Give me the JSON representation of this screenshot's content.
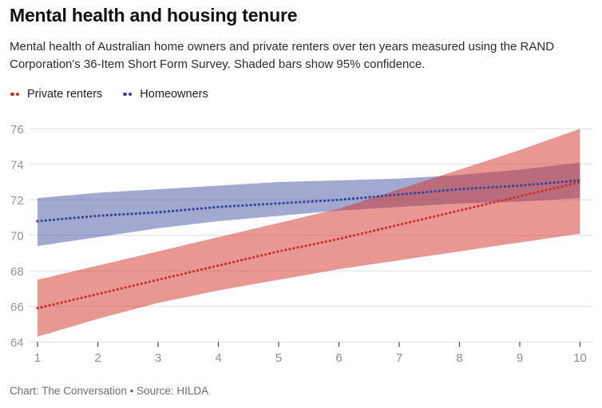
{
  "header": {
    "title": "Mental health and housing tenure",
    "subtitle": "Mental health of Australian home owners and private renters over ten years measured using the RAND Corporation's 36-Item Short Form Survey. Shaded bars show 95% confidence."
  },
  "legend": {
    "items": [
      {
        "label": "Private renters",
        "color": "#c9302a"
      },
      {
        "label": "Homeowners",
        "color": "#36459b"
      }
    ]
  },
  "chart_data": {
    "type": "line",
    "title": "Mental health and housing tenure",
    "xlabel": "",
    "ylabel": "",
    "x": [
      1,
      2,
      3,
      4,
      5,
      6,
      7,
      8,
      9,
      10
    ],
    "xlim": [
      1,
      10
    ],
    "ylim": [
      64,
      76
    ],
    "yticks": [
      64,
      66,
      68,
      70,
      72,
      74,
      76
    ],
    "grid": true,
    "legend_position": "top-left",
    "line_style": "dotted",
    "band_meaning": "95% confidence interval",
    "series": [
      {
        "name": "Private renters",
        "color": "#c9302a",
        "band_color": "rgba(211,47,40,0.5)",
        "values": [
          65.9,
          66.7,
          67.5,
          68.3,
          69.1,
          69.8,
          70.6,
          71.4,
          72.2,
          73.0
        ],
        "ci_upper": [
          67.5,
          68.3,
          69.1,
          69.9,
          70.7,
          71.5,
          72.6,
          73.7,
          74.8,
          76.0
        ],
        "ci_lower": [
          64.3,
          65.3,
          66.2,
          66.9,
          67.5,
          68.1,
          68.6,
          69.1,
          69.6,
          70.1
        ]
      },
      {
        "name": "Homeowners",
        "color": "#36459b",
        "band_color": "rgba(57,73,155,0.47)",
        "values": [
          70.8,
          71.1,
          71.3,
          71.6,
          71.8,
          72.0,
          72.3,
          72.6,
          72.8,
          73.1
        ],
        "ci_upper": [
          72.1,
          72.4,
          72.6,
          72.8,
          73.0,
          73.1,
          73.2,
          73.4,
          73.7,
          74.1
        ],
        "ci_lower": [
          69.4,
          69.9,
          70.4,
          70.8,
          71.1,
          71.4,
          71.6,
          71.8,
          71.9,
          72.1
        ]
      }
    ]
  },
  "axis_style": {
    "grid_color": "#dedede",
    "tick_color": "#4a4a4a",
    "label_color": "#979797"
  },
  "footer": {
    "credit": "Chart: The Conversation • Source: HILDA"
  }
}
